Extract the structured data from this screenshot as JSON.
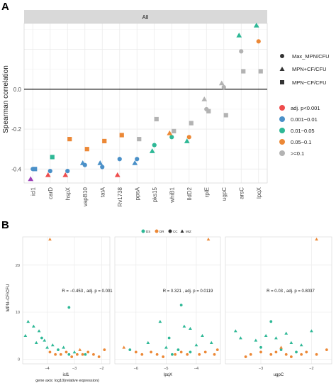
{
  "panel_a": {
    "label": "A",
    "strip": "All",
    "ylabel": "Spearman correlation",
    "y_ticks": [
      "0.0",
      "-0.2",
      "-0.4"
    ],
    "shape_legend": [
      {
        "shape": "circle",
        "label": "Max_MPN/CFU"
      },
      {
        "shape": "triangle",
        "label": "MPN+CF/CFU"
      },
      {
        "shape": "square",
        "label": "MPN−CF/CFU"
      }
    ],
    "color_legend": [
      {
        "color": "#ee4c4c",
        "label": "adj. p<0.001"
      },
      {
        "color": "#4a90c8",
        "label": "0.001−0.01"
      },
      {
        "color": "#2eb896",
        "label": "0.01−0.05"
      },
      {
        "color": "#ec8836",
        "label": "0.05−0.1"
      },
      {
        "color": "#b3b3b3",
        "label": ">=0.1"
      }
    ]
  },
  "panel_b": {
    "label": "B",
    "legend": [
      {
        "shape": "circle",
        "color": "#2eb896",
        "label": "DS"
      },
      {
        "shape": "circle",
        "color": "#ec8836",
        "label": "DR"
      },
      {
        "shape": "circle",
        "color": "#333333",
        "label": "CC"
      },
      {
        "shape": "triangle",
        "color": "#333333",
        "label": "MIZ"
      }
    ],
    "ylabel": "MPN−CF/CFU",
    "y_ticks": [
      "20",
      "10",
      "0"
    ],
    "x_caption": "gene axis: log10(relative expression)",
    "facets": [
      {
        "title": "icl1",
        "annotation": "R = −0.453 , adj. p = 0.001",
        "x_ticks": [
          "−4",
          "−3",
          "−2"
        ]
      },
      {
        "title": "lpqX",
        "annotation": "R = 0.321 , adj. p = 0.0119",
        "x_ticks": [
          "−6",
          "−5",
          "−4"
        ]
      },
      {
        "title": "ugpC",
        "annotation": "R = 0.03 , adj. p = 0.8037",
        "x_ticks": [
          "−3",
          "−2"
        ]
      }
    ]
  },
  "chart_data": [
    {
      "type": "scatter",
      "panel": "A",
      "strip": "All",
      "ylabel": "Spearman correlation",
      "ylim": [
        -0.47,
        0.33
      ],
      "categories": [
        "icl1",
        "carD",
        "hspX",
        "vapB10",
        "tatA",
        "Rv1738",
        "ppsA",
        "pks15",
        "whiB1",
        "lldD2",
        "rplE",
        "ugpC",
        "arsC",
        "lpqX"
      ],
      "series": [
        {
          "name": "Max_MPN/CFU",
          "marker": "circle",
          "values": [
            -0.4,
            -0.41,
            -0.41,
            -0.38,
            -0.39,
            -0.35,
            -0.35,
            -0.28,
            -0.24,
            -0.24,
            -0.1,
            0.01,
            0.19,
            0.24
          ],
          "colors": [
            "#4a90c8",
            "#4a90c8",
            "#4a90c8",
            "#4a90c8",
            "#4a90c8",
            "#4a90c8",
            "#4a90c8",
            "#2eb896",
            "#2eb896",
            "#ec8836",
            "#b3b3b3",
            "#b3b3b3",
            "#b3b3b3",
            "#ec8836"
          ]
        },
        {
          "name": "MPN+CF/CFU",
          "marker": "triangle",
          "values": [
            -0.45,
            -0.43,
            -0.43,
            -0.37,
            -0.37,
            -0.43,
            -0.37,
            -0.31,
            -0.22,
            -0.26,
            -0.05,
            0.03,
            0.27,
            0.32
          ],
          "colors": [
            "#9c3fb8",
            "#ee4c4c",
            "#ee4c4c",
            "#4a90c8",
            "#4a90c8",
            "#ee4c4c",
            "#4a90c8",
            "#2eb896",
            "#ec8836",
            "#2eb896",
            "#b3b3b3",
            "#b3b3b3",
            "#2eb896",
            "#2eb896"
          ]
        },
        {
          "name": "MPN−CF/CFU",
          "marker": "square",
          "values": [
            -0.4,
            -0.34,
            -0.25,
            -0.3,
            -0.26,
            -0.23,
            -0.25,
            -0.15,
            -0.21,
            -0.17,
            -0.11,
            -0.13,
            0.09,
            0.09
          ],
          "colors": [
            "#4a90c8",
            "#2eb896",
            "#ec8836",
            "#ec8836",
            "#ec8836",
            "#ec8836",
            "#b3b3b3",
            "#b3b3b3",
            "#b3b3b3",
            "#b3b3b3",
            "#b3b3b3",
            "#b3b3b3",
            "#b3b3b3",
            "#b3b3b3"
          ]
        }
      ],
      "legend": {
        "shape": [
          "Max_MPN/CFU",
          "MPN+CF/CFU",
          "MPN−CF/CFU"
        ],
        "color": [
          "adj. p<0.001",
          "0.001−0.01",
          "0.01−0.05",
          "0.05−0.1",
          ">=0.1"
        ]
      },
      "grid": true
    },
    {
      "type": "scatter",
      "panel": "B",
      "ylabel": "MPN−CF/CFU",
      "xlabel": "gene axis: log10(relative expression)",
      "ylim": [
        -1,
        26
      ],
      "facets": [
        {
          "gene": "icl1",
          "xlim": [
            -4.9,
            -1.7
          ],
          "annotation": "R = −0.453 , adj. p = 0.001",
          "points": [
            {
              "x": -3.9,
              "y": 25.5,
              "group": "DR",
              "marker": "triangle"
            },
            {
              "x": -3.2,
              "y": 11.0,
              "group": "DS",
              "marker": "circle"
            },
            {
              "x": -4.7,
              "y": 8.0,
              "group": "DS",
              "marker": "triangle"
            },
            {
              "x": -4.5,
              "y": 7.0,
              "group": "DS",
              "marker": "triangle"
            },
            {
              "x": -4.3,
              "y": 6.0,
              "group": "DS",
              "marker": "triangle"
            },
            {
              "x": -4.8,
              "y": 5.0,
              "group": "DS",
              "marker": "triangle"
            },
            {
              "x": -4.2,
              "y": 4.5,
              "group": "DS",
              "marker": "circle"
            },
            {
              "x": -4.1,
              "y": 4.0,
              "group": "DS",
              "marker": "triangle"
            },
            {
              "x": -4.4,
              "y": 3.5,
              "group": "DS",
              "marker": "triangle"
            },
            {
              "x": -3.8,
              "y": 3.0,
              "group": "DS",
              "marker": "triangle"
            },
            {
              "x": -4.0,
              "y": 2.5,
              "group": "DS",
              "marker": "triangle"
            },
            {
              "x": -3.6,
              "y": 2.0,
              "group": "DS",
              "marker": "circle"
            },
            {
              "x": -3.4,
              "y": 2.5,
              "group": "DS",
              "marker": "triangle"
            },
            {
              "x": -3.2,
              "y": 1.0,
              "group": "DS",
              "marker": "circle"
            },
            {
              "x": -3.0,
              "y": 1.5,
              "group": "DS",
              "marker": "triangle"
            },
            {
              "x": -2.6,
              "y": 1.0,
              "group": "DS",
              "marker": "circle"
            },
            {
              "x": -3.9,
              "y": 1.5,
              "group": "DR",
              "marker": "circle"
            },
            {
              "x": -3.7,
              "y": 1.0,
              "group": "DR",
              "marker": "circle"
            },
            {
              "x": -3.5,
              "y": 1.0,
              "group": "DR",
              "marker": "circle"
            },
            {
              "x": -3.3,
              "y": 1.5,
              "group": "DR",
              "marker": "circle"
            },
            {
              "x": -3.1,
              "y": 0.5,
              "group": "DR",
              "marker": "circle"
            },
            {
              "x": -2.9,
              "y": 1.0,
              "group": "DR",
              "marker": "circle"
            },
            {
              "x": -2.7,
              "y": 1.0,
              "group": "DR",
              "marker": "circle"
            },
            {
              "x": -2.5,
              "y": 1.5,
              "group": "DR",
              "marker": "circle"
            },
            {
              "x": -2.3,
              "y": 1.0,
              "group": "DR",
              "marker": "circle"
            },
            {
              "x": -2.1,
              "y": 0.5,
              "group": "DR",
              "marker": "circle"
            },
            {
              "x": -1.9,
              "y": 2.0,
              "group": "DR",
              "marker": "circle"
            },
            {
              "x": -2.8,
              "y": 2.0,
              "group": "DR",
              "marker": "triangle"
            }
          ]
        },
        {
          "gene": "lpqX",
          "xlim": [
            -6.7,
            -3.2
          ],
          "annotation": "R = 0.321 , adj. p = 0.0119",
          "points": [
            {
              "x": -3.6,
              "y": 25.5,
              "group": "DR",
              "marker": "triangle"
            },
            {
              "x": -4.5,
              "y": 11.5,
              "group": "DS",
              "marker": "circle"
            },
            {
              "x": -5.2,
              "y": 8.0,
              "group": "DS",
              "marker": "triangle"
            },
            {
              "x": -4.4,
              "y": 7.0,
              "group": "DS",
              "marker": "triangle"
            },
            {
              "x": -4.2,
              "y": 6.5,
              "group": "DS",
              "marker": "triangle"
            },
            {
              "x": -3.8,
              "y": 5.0,
              "group": "DS",
              "marker": "triangle"
            },
            {
              "x": -4.9,
              "y": 4.5,
              "group": "DS",
              "marker": "circle"
            },
            {
              "x": -5.6,
              "y": 3.5,
              "group": "DS",
              "marker": "triangle"
            },
            {
              "x": -4.0,
              "y": 3.0,
              "group": "DS",
              "marker": "triangle"
            },
            {
              "x": -5.0,
              "y": 2.5,
              "group": "DS",
              "marker": "triangle"
            },
            {
              "x": -4.6,
              "y": 2.0,
              "group": "DS",
              "marker": "circle"
            },
            {
              "x": -6.2,
              "y": 2.0,
              "group": "DS",
              "marker": "circle"
            },
            {
              "x": -3.5,
              "y": 3.5,
              "group": "DS",
              "marker": "triangle"
            },
            {
              "x": -4.8,
              "y": 1.0,
              "group": "DS",
              "marker": "circle"
            },
            {
              "x": -4.2,
              "y": 1.5,
              "group": "DS",
              "marker": "circle"
            },
            {
              "x": -6.0,
              "y": 1.5,
              "group": "DR",
              "marker": "circle"
            },
            {
              "x": -5.8,
              "y": 1.0,
              "group": "DR",
              "marker": "circle"
            },
            {
              "x": -5.5,
              "y": 1.5,
              "group": "DR",
              "marker": "circle"
            },
            {
              "x": -5.3,
              "y": 1.0,
              "group": "DR",
              "marker": "circle"
            },
            {
              "x": -5.1,
              "y": 0.5,
              "group": "DR",
              "marker": "circle"
            },
            {
              "x": -4.7,
              "y": 1.0,
              "group": "DR",
              "marker": "circle"
            },
            {
              "x": -4.5,
              "y": 1.5,
              "group": "DR",
              "marker": "circle"
            },
            {
              "x": -4.3,
              "y": 1.0,
              "group": "DR",
              "marker": "circle"
            },
            {
              "x": -3.9,
              "y": 1.0,
              "group": "DR",
              "marker": "circle"
            },
            {
              "x": -3.7,
              "y": 1.5,
              "group": "DR",
              "marker": "circle"
            },
            {
              "x": -3.4,
              "y": 1.0,
              "group": "DR",
              "marker": "circle"
            },
            {
              "x": -3.3,
              "y": 2.0,
              "group": "DR",
              "marker": "circle"
            },
            {
              "x": -6.4,
              "y": 2.5,
              "group": "DR",
              "marker": "triangle"
            }
          ]
        },
        {
          "gene": "ugpC",
          "xlim": [
            -3.7,
            -1.6
          ],
          "annotation": "R = 0.03 , adj. p = 0.8037",
          "points": [
            {
              "x": -1.9,
              "y": 25.5,
              "group": "DR",
              "marker": "triangle"
            },
            {
              "x": -2.8,
              "y": 8.0,
              "group": "DS",
              "marker": "circle"
            },
            {
              "x": -3.5,
              "y": 6.0,
              "group": "DS",
              "marker": "triangle"
            },
            {
              "x": -3.4,
              "y": 4.5,
              "group": "DS",
              "marker": "triangle"
            },
            {
              "x": -3.1,
              "y": 4.0,
              "group": "DS",
              "marker": "triangle"
            },
            {
              "x": -2.9,
              "y": 5.0,
              "group": "DS",
              "marker": "triangle"
            },
            {
              "x": -2.7,
              "y": 4.5,
              "group": "DS",
              "marker": "triangle"
            },
            {
              "x": -2.5,
              "y": 5.5,
              "group": "DS",
              "marker": "triangle"
            },
            {
              "x": -2.4,
              "y": 3.5,
              "group": "DS",
              "marker": "triangle"
            },
            {
              "x": -2.2,
              "y": 3.0,
              "group": "DS",
              "marker": "triangle"
            },
            {
              "x": -2.0,
              "y": 6.0,
              "group": "DS",
              "marker": "triangle"
            },
            {
              "x": -2.6,
              "y": 2.0,
              "group": "DS",
              "marker": "circle"
            },
            {
              "x": -3.0,
              "y": 2.5,
              "group": "DS",
              "marker": "circle"
            },
            {
              "x": -2.3,
              "y": 1.5,
              "group": "DS",
              "marker": "circle"
            },
            {
              "x": -3.2,
              "y": 1.0,
              "group": "DR",
              "marker": "circle"
            },
            {
              "x": -3.0,
              "y": 1.5,
              "group": "DR",
              "marker": "circle"
            },
            {
              "x": -2.8,
              "y": 1.0,
              "group": "DR",
              "marker": "circle"
            },
            {
              "x": -2.7,
              "y": 1.5,
              "group": "DR",
              "marker": "circle"
            },
            {
              "x": -2.5,
              "y": 1.0,
              "group": "DR",
              "marker": "circle"
            },
            {
              "x": -2.4,
              "y": 0.5,
              "group": "DR",
              "marker": "circle"
            },
            {
              "x": -2.2,
              "y": 1.0,
              "group": "DR",
              "marker": "circle"
            },
            {
              "x": -2.1,
              "y": 1.5,
              "group": "DR",
              "marker": "circle"
            },
            {
              "x": -1.9,
              "y": 1.0,
              "group": "DR",
              "marker": "circle"
            },
            {
              "x": -1.7,
              "y": 2.0,
              "group": "DR",
              "marker": "circle"
            },
            {
              "x": -3.3,
              "y": 0.5,
              "group": "DR",
              "marker": "circle"
            },
            {
              "x": -2.6,
              "y": 2.5,
              "group": "DR",
              "marker": "triangle"
            }
          ]
        }
      ]
    }
  ]
}
